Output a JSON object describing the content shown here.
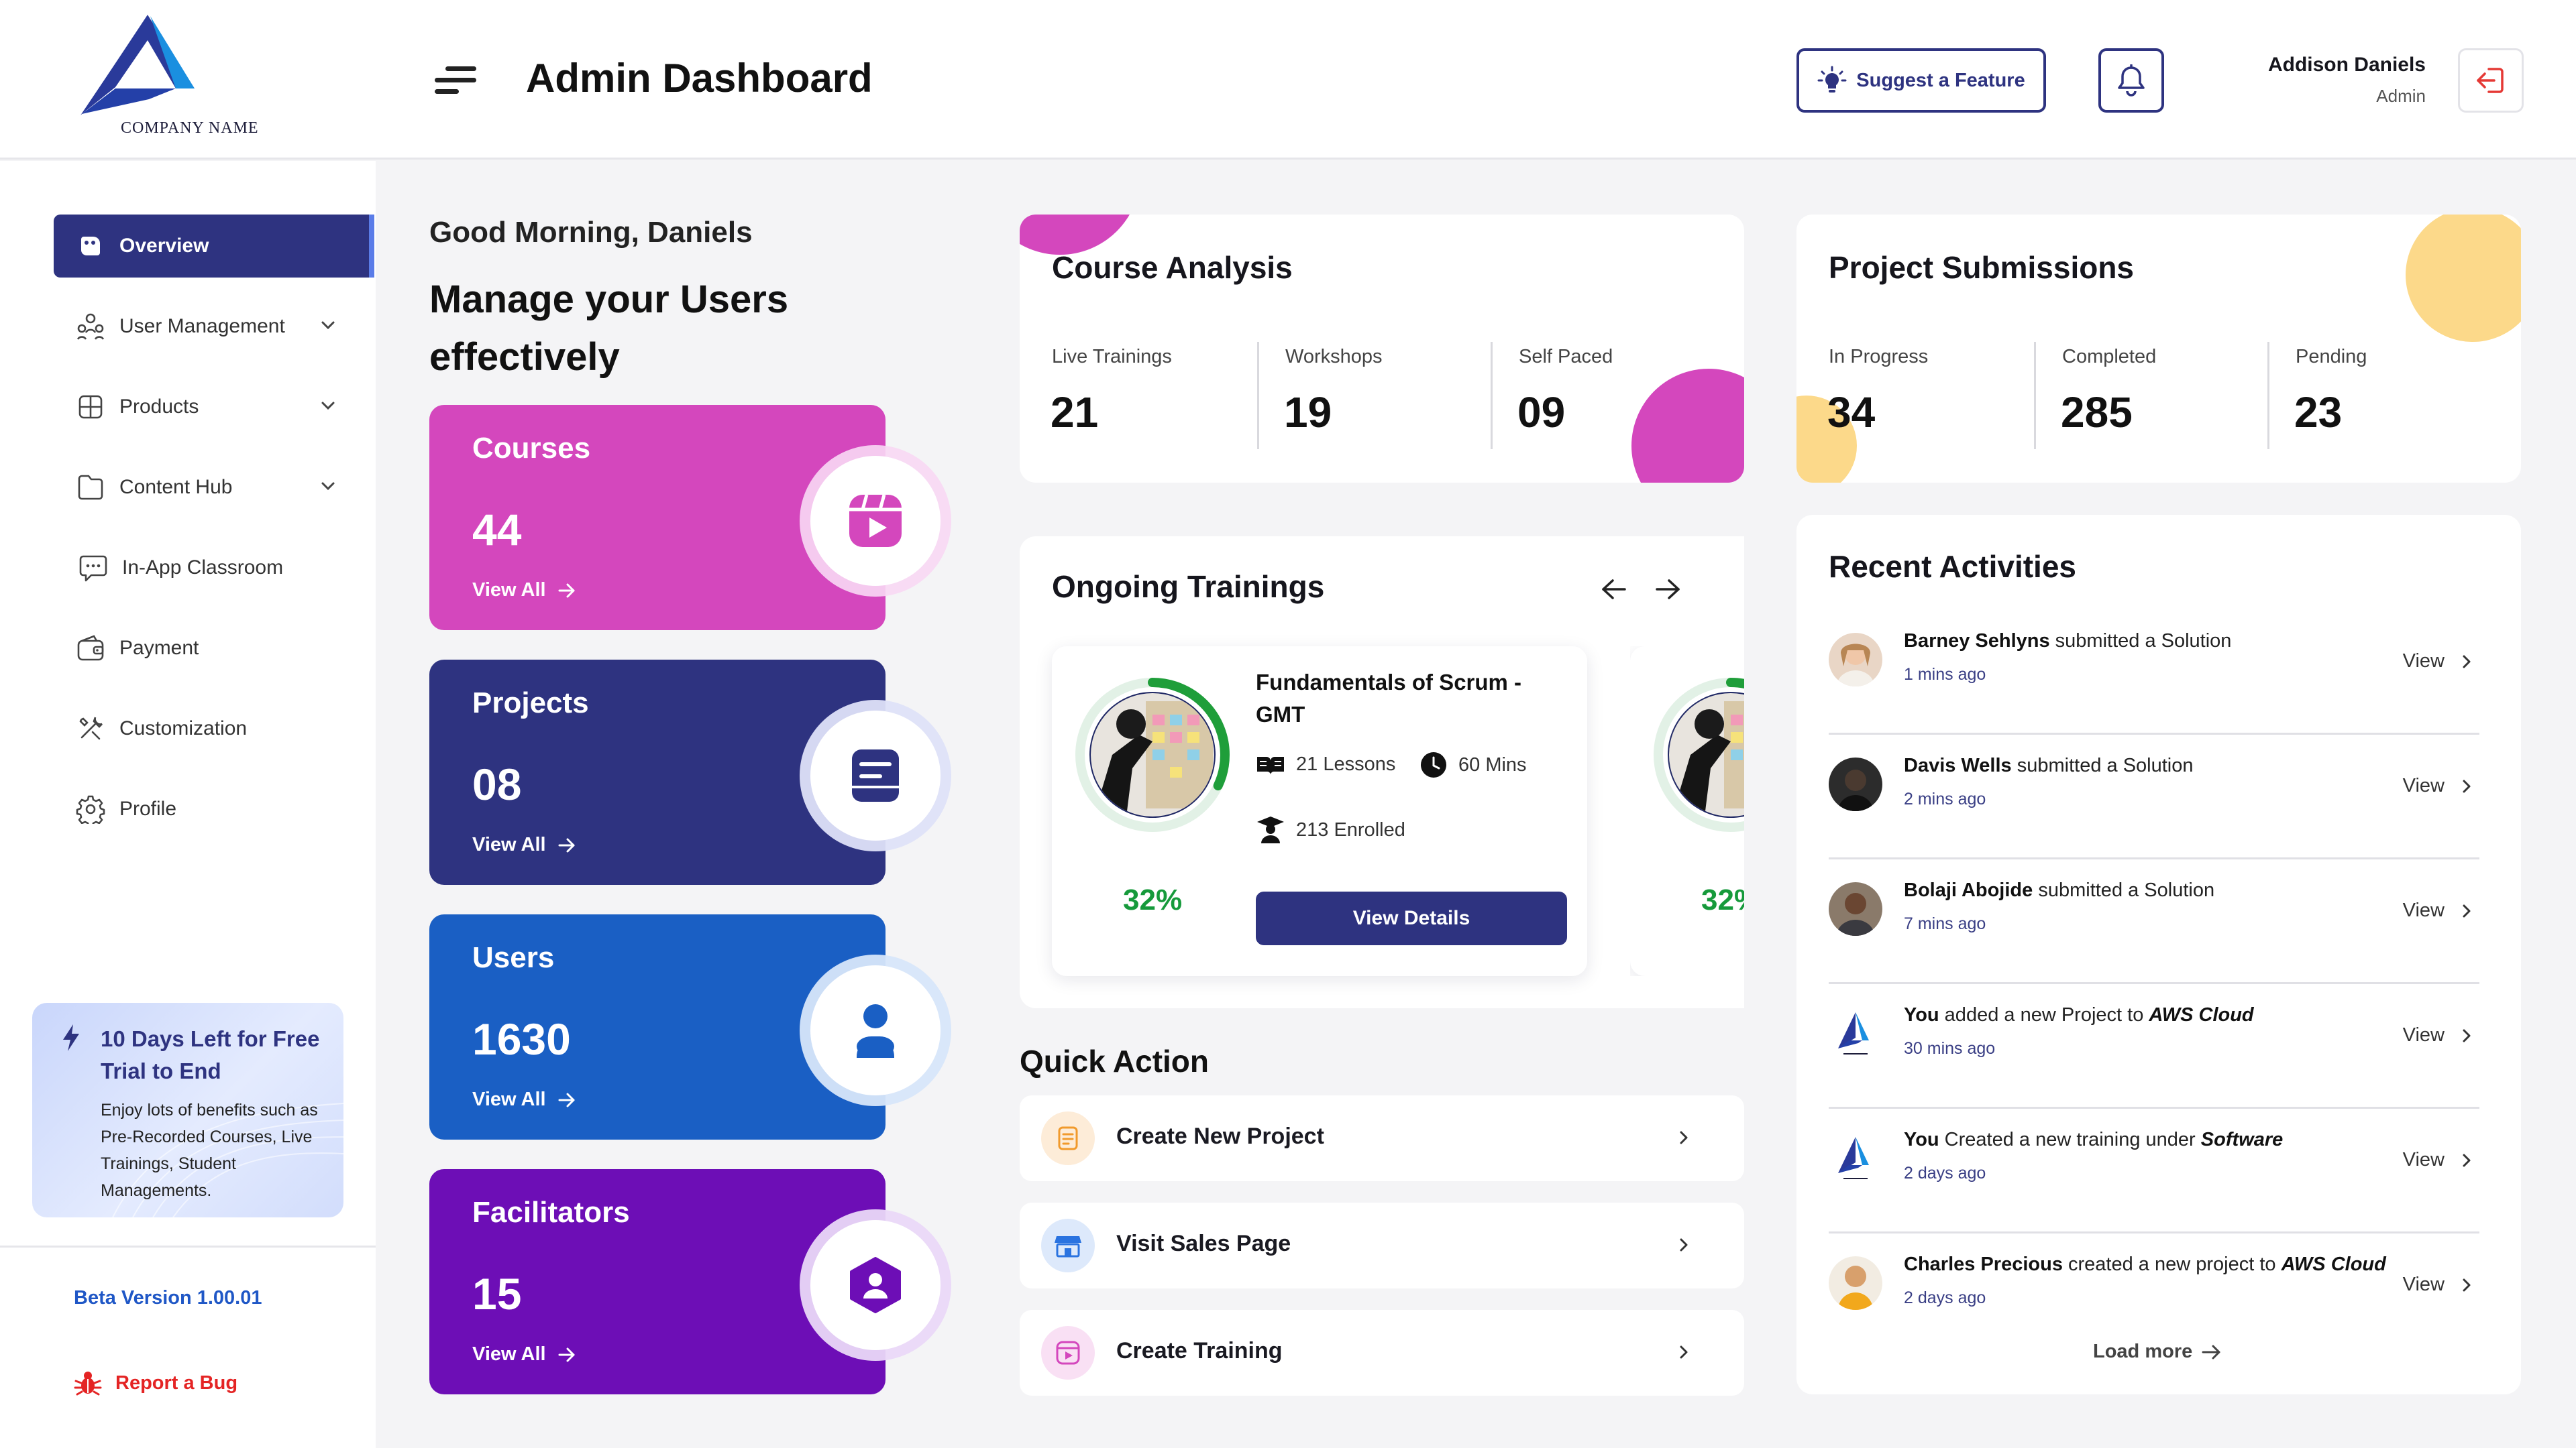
{
  "header": {
    "logo_text": "COMPANY NAME",
    "page_title": "Admin Dashboard",
    "suggest_label": "Suggest a Feature",
    "user_name": "Addison Daniels",
    "user_role": "Admin"
  },
  "sidebar": {
    "items": [
      {
        "label": "Overview",
        "icon": "overview-icon",
        "active": true
      },
      {
        "label": "User Management",
        "icon": "users-icon",
        "has_chevron": true
      },
      {
        "label": "Products",
        "icon": "products-icon",
        "has_chevron": true
      },
      {
        "label": "Content Hub",
        "icon": "content-icon",
        "has_chevron": true
      },
      {
        "label": "In-App Classroom",
        "icon": "chat-icon"
      },
      {
        "label": "Payment",
        "icon": "wallet-icon"
      },
      {
        "label": "Customization",
        "icon": "tools-icon"
      },
      {
        "label": "Profile",
        "icon": "gear-icon"
      }
    ],
    "trial": {
      "title": "10 Days Left for  Free Trial to End",
      "body": "Enjoy lots of benefits such as Pre-Recorded Courses, Live Trainings, Student Managements."
    },
    "version": "Beta Version 1.00.01",
    "report_bug": "Report a Bug"
  },
  "greeting": {
    "hello": "Good Morning, Daniels",
    "subtitle": "Manage your Users effectively"
  },
  "stats": [
    {
      "title": "Courses",
      "value": "44",
      "link": "View All",
      "color": "#d447bd",
      "icon": "video-icon"
    },
    {
      "title": "Projects",
      "value": "08",
      "link": "View All",
      "color": "#2e3380",
      "icon": "document-icon"
    },
    {
      "title": "Users",
      "value": "1630",
      "link": "View All",
      "color": "#1a5fc4",
      "icon": "user-icon"
    },
    {
      "title": "Facilitators",
      "value": "15",
      "link": "View All",
      "color": "#6d0eb6",
      "icon": "facilitator-icon"
    }
  ],
  "course_analysis": {
    "title": "Course Analysis",
    "metrics": [
      {
        "label": "Live Trainings",
        "value": "21"
      },
      {
        "label": "Workshops",
        "value": "19"
      },
      {
        "label": "Self Paced",
        "value": "09"
      }
    ]
  },
  "project_submissions": {
    "title": "Project Submissions",
    "metrics": [
      {
        "label": "In Progress",
        "value": "34"
      },
      {
        "label": "Completed",
        "value": "285"
      },
      {
        "label": "Pending",
        "value": "23"
      }
    ]
  },
  "ongoing": {
    "title": "Ongoing Trainings",
    "card": {
      "name": "Fundamentals of Scrum - GMT",
      "lessons": "21 Lessons",
      "duration": "60 Mins",
      "enrolled": "213 Enrolled",
      "progress_label": "32%",
      "progress": 0.32,
      "button": "View Details"
    },
    "next_card_progress_label": "32%"
  },
  "quick_action": {
    "title": "Quick Action",
    "items": [
      {
        "label": "Create New Project",
        "icon": "project-icon",
        "color": "#f19a2c"
      },
      {
        "label": "Visit Sales Page",
        "icon": "store-icon",
        "color": "#2a73e0"
      },
      {
        "label": "Create Training",
        "icon": "training-icon",
        "color": "#d447bd"
      }
    ]
  },
  "activities": {
    "title": "Recent Activities",
    "view_label": "View",
    "load_more": "Load more",
    "items": [
      {
        "name": "Barney Sehlyns",
        "action": " submitted a Solution",
        "target": "",
        "time": "1 mins ago"
      },
      {
        "name": "Davis Wells",
        "action": " submitted a Solution",
        "target": "",
        "time": "2 mins ago"
      },
      {
        "name": "Bolaji Abojide",
        "action": " submitted a Solution",
        "target": "",
        "time": "7 mins ago"
      },
      {
        "name": "You",
        "action": " added a new Project to ",
        "target": "AWS Cloud",
        "time": "30 mins ago"
      },
      {
        "name": "You",
        "action": " Created a new training under ",
        "target": "Software",
        "time": "2 days ago"
      },
      {
        "name": "Charles Precious",
        "action": " created a new project to ",
        "target": "AWS Cloud",
        "time": "2 days ago"
      }
    ]
  }
}
